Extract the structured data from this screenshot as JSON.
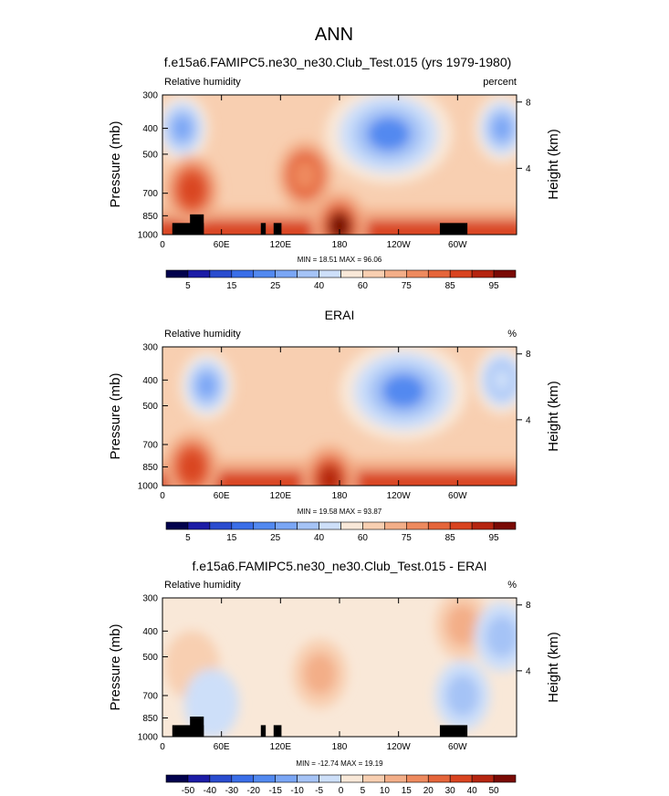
{
  "figure": {
    "title": "ANN"
  },
  "chart_data": [
    {
      "type": "heatmap",
      "title": "f.e15a6.FAMIPC5.ne30_ne30.Club_Test.015 (yrs 1979-1980)",
      "left_label": "Relative humidity",
      "right_label": "percent",
      "ylabel": "Pressure (mb)",
      "y2label": "Height (km)",
      "x_ticks": [
        "0",
        "60E",
        "120E",
        "180",
        "120W",
        "60W"
      ],
      "x_tick_values": [
        0,
        60,
        120,
        180,
        240,
        300
      ],
      "xlim": [
        0,
        360
      ],
      "y_ticks": [
        "300",
        "400",
        "500",
        "700",
        "850",
        "1000"
      ],
      "y_tick_values": [
        300,
        400,
        500,
        700,
        850,
        1000
      ],
      "ylim": [
        1000,
        300
      ],
      "y_scale": "log",
      "y2_ticks": [
        "8",
        "4"
      ],
      "y2_tick_values": [
        8,
        4
      ],
      "min_max_text": "MIN = 18.51  MAX = 96.06",
      "min": 18.51,
      "max": 96.06,
      "colorbar": {
        "labels": [
          "5",
          "15",
          "25",
          "40",
          "60",
          "75",
          "85",
          "95"
        ],
        "label_positions": [
          1,
          3,
          5,
          7,
          9,
          11,
          13,
          15
        ],
        "levels": [
          5,
          10,
          15,
          20,
          25,
          30,
          40,
          50,
          60,
          70,
          75,
          80,
          85,
          90,
          95
        ],
        "colors": [
          "#02024d",
          "#1c1ca6",
          "#2a4ccf",
          "#3a6ee8",
          "#5289f0",
          "#7aa6f5",
          "#a5c3f6",
          "#cddff9",
          "#f9e8d8",
          "#f8cfb1",
          "#f3ae88",
          "#ee8a5e",
          "#e5653a",
          "#d94420",
          "#b52510",
          "#7a0a05"
        ]
      },
      "features": [
        {
          "kind": "min",
          "lon": 20,
          "p": 400,
          "value": 25
        },
        {
          "kind": "min",
          "lon": 230,
          "p": 420,
          "value": 22
        },
        {
          "kind": "min",
          "lon": 345,
          "p": 400,
          "value": 25
        },
        {
          "kind": "max",
          "lon": 145,
          "p": 600,
          "value": 75
        },
        {
          "kind": "max",
          "lon": 30,
          "p": 680,
          "value": 85
        },
        {
          "kind": "max",
          "lon": 180,
          "p": 930,
          "value": 95
        }
      ],
      "mask": [
        {
          "lon0": 10,
          "lon1": 42,
          "p_top": 905
        },
        {
          "lon0": 28,
          "lon1": 42,
          "p_top": 840
        },
        {
          "lon0": 100,
          "lon1": 105,
          "p_top": 905
        },
        {
          "lon0": 113,
          "lon1": 121,
          "p_top": 905
        },
        {
          "lon0": 282,
          "lon1": 310,
          "p_top": 905
        }
      ]
    },
    {
      "type": "heatmap",
      "title": "ERAI",
      "left_label": "Relative humidity",
      "right_label": "%",
      "ylabel": "Pressure (mb)",
      "y2label": "Height (km)",
      "x_ticks": [
        "0",
        "60E",
        "120E",
        "180",
        "120W",
        "60W"
      ],
      "x_tick_values": [
        0,
        60,
        120,
        180,
        240,
        300
      ],
      "xlim": [
        0,
        360
      ],
      "y_ticks": [
        "300",
        "400",
        "500",
        "700",
        "850",
        "1000"
      ],
      "y_tick_values": [
        300,
        400,
        500,
        700,
        850,
        1000
      ],
      "ylim": [
        1000,
        300
      ],
      "y_scale": "log",
      "y2_ticks": [
        "8",
        "4"
      ],
      "y2_tick_values": [
        8,
        4
      ],
      "min_max_text": "MIN = 19.58  MAX = 93.87",
      "min": 19.58,
      "max": 93.87,
      "colorbar": {
        "labels": [
          "5",
          "15",
          "25",
          "40",
          "60",
          "75",
          "85",
          "95"
        ],
        "label_positions": [
          1,
          3,
          5,
          7,
          9,
          11,
          13,
          15
        ],
        "levels": [
          5,
          10,
          15,
          20,
          25,
          30,
          40,
          50,
          60,
          70,
          75,
          80,
          85,
          90,
          95
        ],
        "colors": [
          "#02024d",
          "#1c1ca6",
          "#2a4ccf",
          "#3a6ee8",
          "#5289f0",
          "#7aa6f5",
          "#a5c3f6",
          "#cddff9",
          "#f9e8d8",
          "#f8cfb1",
          "#f3ae88",
          "#ee8a5e",
          "#e5653a",
          "#d94420",
          "#b52510",
          "#7a0a05"
        ]
      },
      "features": [
        {
          "kind": "min",
          "lon": 45,
          "p": 420,
          "value": 25
        },
        {
          "kind": "min",
          "lon": 245,
          "p": 440,
          "value": 22
        },
        {
          "kind": "min",
          "lon": 345,
          "p": 400,
          "value": 40
        },
        {
          "kind": "max",
          "lon": 30,
          "p": 850,
          "value": 85
        },
        {
          "kind": "max",
          "lon": 170,
          "p": 950,
          "value": 90
        }
      ],
      "mask": []
    },
    {
      "type": "heatmap",
      "title": "f.e15a6.FAMIPC5.ne30_ne30.Club_Test.015 - ERAI",
      "left_label": "Relative humidity",
      "right_label": "%",
      "ylabel": "Pressure (mb)",
      "y2label": "Height (km)",
      "x_ticks": [
        "0",
        "60E",
        "120E",
        "180",
        "120W",
        "60W"
      ],
      "x_tick_values": [
        0,
        60,
        120,
        180,
        240,
        300
      ],
      "xlim": [
        0,
        360
      ],
      "y_ticks": [
        "300",
        "400",
        "500",
        "700",
        "850",
        "1000"
      ],
      "y_tick_values": [
        300,
        400,
        500,
        700,
        850,
        1000
      ],
      "ylim": [
        1000,
        300
      ],
      "y_scale": "log",
      "y2_ticks": [
        "8",
        "4"
      ],
      "y2_tick_values": [
        8,
        4
      ],
      "min_max_text": "MIN = -12.74  MAX = 19.19",
      "min": -12.74,
      "max": 19.19,
      "colorbar": {
        "labels": [
          "-50",
          "-40",
          "-30",
          "-20",
          "-15",
          "-10",
          "-5",
          "0",
          "5",
          "10",
          "15",
          "20",
          "30",
          "40",
          "50"
        ],
        "label_positions": [
          1,
          2,
          3,
          4,
          5,
          6,
          7,
          8,
          9,
          10,
          11,
          12,
          13,
          14,
          15
        ],
        "levels": [
          -50,
          -40,
          -30,
          -20,
          -15,
          -10,
          -5,
          0,
          5,
          10,
          15,
          20,
          30,
          40,
          50
        ],
        "colors": [
          "#02024d",
          "#1c1ca6",
          "#2a4ccf",
          "#3a6ee8",
          "#5289f0",
          "#7aa6f5",
          "#a5c3f6",
          "#cddff9",
          "#f9e8d8",
          "#f8cfb1",
          "#f3ae88",
          "#ee8a5e",
          "#e5653a",
          "#d94420",
          "#b52510",
          "#7a0a05"
        ]
      },
      "features": [
        {
          "kind": "max",
          "lon": 160,
          "p": 580,
          "value": 10
        },
        {
          "kind": "max",
          "lon": 305,
          "p": 380,
          "value": 10
        },
        {
          "kind": "max",
          "lon": 30,
          "p": 540,
          "value": 5
        },
        {
          "kind": "min",
          "lon": 305,
          "p": 700,
          "value": -10
        },
        {
          "kind": "min",
          "lon": 345,
          "p": 420,
          "value": -10
        },
        {
          "kind": "min",
          "lon": 50,
          "p": 750,
          "value": -5
        }
      ],
      "mask": [
        {
          "lon0": 10,
          "lon1": 42,
          "p_top": 905
        },
        {
          "lon0": 28,
          "lon1": 42,
          "p_top": 840
        },
        {
          "lon0": 100,
          "lon1": 105,
          "p_top": 905
        },
        {
          "lon0": 113,
          "lon1": 121,
          "p_top": 905
        },
        {
          "lon0": 282,
          "lon1": 310,
          "p_top": 905
        }
      ]
    }
  ]
}
